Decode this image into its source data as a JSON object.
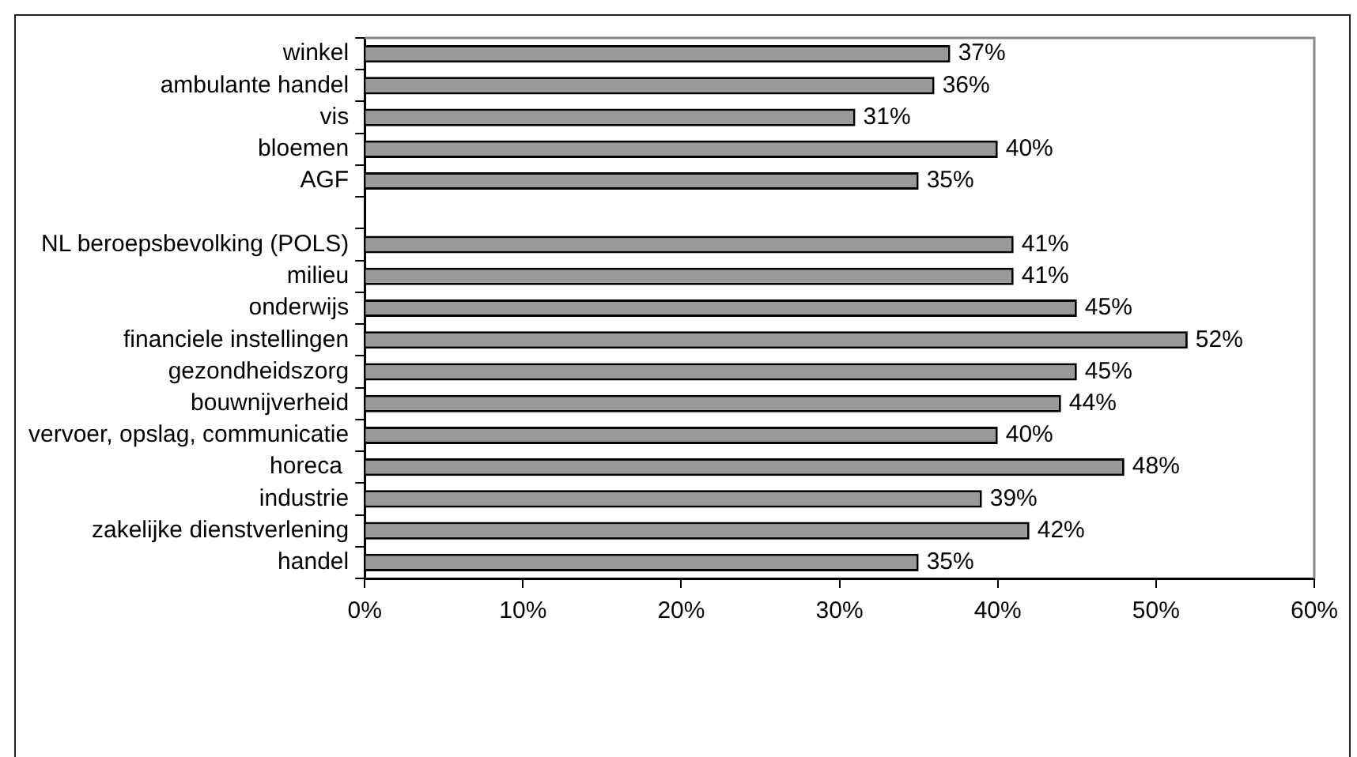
{
  "chart_data": {
    "type": "bar",
    "orientation": "horizontal",
    "categories": [
      "winkel",
      "ambulante handel",
      "vis",
      "bloemen",
      "AGF",
      null,
      "NL beroepsbevolking (POLS)",
      "milieu",
      "onderwijs",
      "financiele instellingen",
      "gezondheidszorg",
      "bouwnijverheid",
      "vervoer, opslag, communicatie",
      "horeca ",
      "industrie",
      "zakelijke dienstverlening",
      "handel"
    ],
    "values": [
      37,
      36,
      31,
      40,
      35,
      null,
      41,
      41,
      45,
      52,
      45,
      44,
      40,
      48,
      39,
      42,
      35
    ],
    "value_labels": [
      "37%",
      "36%",
      "31%",
      "40%",
      "35%",
      null,
      "41%",
      "41%",
      "45%",
      "52%",
      "45%",
      "44%",
      "40%",
      "48%",
      "39%",
      "42%",
      "35%"
    ],
    "color": "#999999",
    "xlim": [
      0,
      60
    ],
    "xticks": [
      {
        "value": 0,
        "label": "0%"
      },
      {
        "value": 10,
        "label": "10%"
      },
      {
        "value": 20,
        "label": "20%"
      },
      {
        "value": 30,
        "label": "30%"
      },
      {
        "value": 40,
        "label": "40%"
      },
      {
        "value": 50,
        "label": "50%"
      },
      {
        "value": 60,
        "label": "60%"
      }
    ],
    "grid": false,
    "legend": false
  }
}
